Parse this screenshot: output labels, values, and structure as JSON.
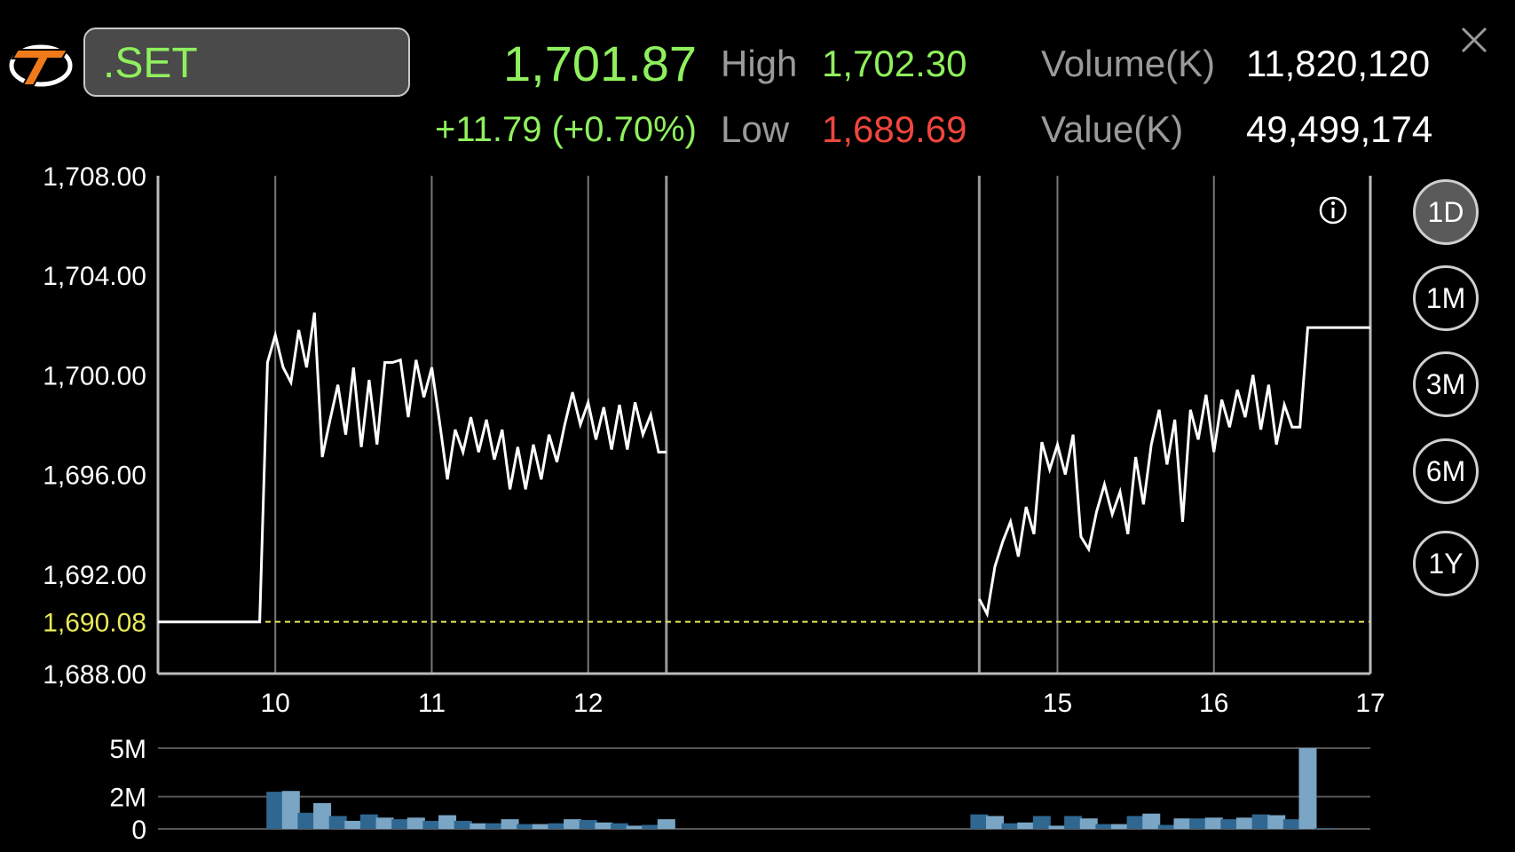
{
  "header": {
    "symbol": ".SET",
    "last_price": "1,701.87",
    "change": "+11.79 (+0.70%)",
    "high_label": "High",
    "high_value": "1,702.30",
    "low_label": "Low",
    "low_value": "1,689.69",
    "volume_label": "Volume(K)",
    "volume_value": "11,820,120",
    "value_label": "Value(K)",
    "value_value": "49,499,174"
  },
  "icons": {
    "logo": "brand-logo-icon",
    "close": "close-icon",
    "info": "info-icon"
  },
  "timeframes": [
    {
      "label": "1D",
      "active": true
    },
    {
      "label": "1M",
      "active": false
    },
    {
      "label": "3M",
      "active": false
    },
    {
      "label": "6M",
      "active": false
    },
    {
      "label": "1Y",
      "active": false
    }
  ],
  "colors": {
    "price_up": "#8ff05d",
    "price_down": "#f0463c",
    "prev_close_line": "#e8e85a",
    "line": "#ffffff",
    "volume_bar_dark": "#2f6791",
    "volume_bar_light": "#7aa5c4"
  },
  "chart_data": [
    {
      "type": "line",
      "ylim": [
        1688.0,
        1708.0
      ],
      "y_ticks": [
        "1,708.00",
        "1,704.00",
        "1,700.00",
        "1,696.00",
        "1,692.00",
        "1,688.00"
      ],
      "y_tick_values": [
        1708,
        1704,
        1700,
        1696,
        1692,
        1688
      ],
      "reference_line": {
        "label": "1,690.08",
        "value": 1690.08
      },
      "x_range": [
        9.25,
        17.0
      ],
      "x_ticks": [
        {
          "label": "10",
          "value": 10
        },
        {
          "label": "11",
          "value": 11
        },
        {
          "label": "12",
          "value": 12
        },
        {
          "label": "15",
          "value": 15
        },
        {
          "label": "16",
          "value": 16
        },
        {
          "label": "17",
          "value": 17
        }
      ],
      "session_breaks": [
        12.5,
        14.5
      ],
      "series": [
        {
          "points": [
            [
              9.25,
              1690.08
            ],
            [
              9.9,
              1690.08
            ],
            [
              9.95,
              1700.5
            ],
            [
              10.0,
              1701.6
            ],
            [
              10.05,
              1700.3
            ],
            [
              10.1,
              1699.7
            ],
            [
              10.15,
              1701.8
            ],
            [
              10.2,
              1700.3
            ],
            [
              10.25,
              1702.5
            ],
            [
              10.3,
              1696.7
            ],
            [
              10.35,
              1698.2
            ],
            [
              10.4,
              1699.6
            ],
            [
              10.45,
              1697.6
            ],
            [
              10.5,
              1700.3
            ],
            [
              10.55,
              1697.1
            ],
            [
              10.6,
              1699.8
            ],
            [
              10.65,
              1697.2
            ],
            [
              10.7,
              1700.5
            ],
            [
              10.75,
              1700.5
            ],
            [
              10.8,
              1700.6
            ],
            [
              10.85,
              1698.3
            ],
            [
              10.9,
              1700.6
            ],
            [
              10.95,
              1699.1
            ],
            [
              11.0,
              1700.3
            ],
            [
              11.05,
              1698.1
            ],
            [
              11.1,
              1695.8
            ],
            [
              11.15,
              1697.8
            ],
            [
              11.2,
              1696.9
            ],
            [
              11.25,
              1698.3
            ],
            [
              11.3,
              1696.9
            ],
            [
              11.35,
              1698.2
            ],
            [
              11.4,
              1696.6
            ],
            [
              11.45,
              1697.8
            ],
            [
              11.5,
              1695.4
            ],
            [
              11.55,
              1697.1
            ],
            [
              11.6,
              1695.4
            ],
            [
              11.65,
              1697.2
            ],
            [
              11.7,
              1695.8
            ],
            [
              11.75,
              1697.6
            ],
            [
              11.8,
              1696.5
            ],
            [
              11.85,
              1698.0
            ],
            [
              11.9,
              1699.3
            ],
            [
              11.95,
              1698.0
            ],
            [
              12.0,
              1698.9
            ],
            [
              12.05,
              1697.4
            ],
            [
              12.1,
              1698.7
            ],
            [
              12.15,
              1697.0
            ],
            [
              12.2,
              1698.8
            ],
            [
              12.25,
              1697.0
            ],
            [
              12.3,
              1698.9
            ],
            [
              12.35,
              1697.6
            ],
            [
              12.4,
              1698.4
            ],
            [
              12.45,
              1696.9
            ],
            [
              12.5,
              1696.9
            ]
          ]
        },
        {
          "points": [
            [
              14.5,
              1691.0
            ],
            [
              14.55,
              1690.4
            ],
            [
              14.6,
              1692.3
            ],
            [
              14.65,
              1693.3
            ],
            [
              14.7,
              1694.1
            ],
            [
              14.75,
              1692.7
            ],
            [
              14.8,
              1694.7
            ],
            [
              14.85,
              1693.6
            ],
            [
              14.9,
              1697.3
            ],
            [
              14.95,
              1696.2
            ],
            [
              15.0,
              1697.2
            ],
            [
              15.05,
              1696.0
            ],
            [
              15.1,
              1697.6
            ],
            [
              15.15,
              1693.5
            ],
            [
              15.2,
              1693.0
            ],
            [
              15.25,
              1694.5
            ],
            [
              15.3,
              1695.6
            ],
            [
              15.35,
              1694.4
            ],
            [
              15.4,
              1695.3
            ],
            [
              15.45,
              1693.6
            ],
            [
              15.5,
              1696.7
            ],
            [
              15.55,
              1694.8
            ],
            [
              15.6,
              1697.2
            ],
            [
              15.65,
              1698.6
            ],
            [
              15.7,
              1696.4
            ],
            [
              15.75,
              1698.2
            ],
            [
              15.8,
              1694.1
            ],
            [
              15.85,
              1698.6
            ],
            [
              15.9,
              1697.4
            ],
            [
              15.95,
              1699.2
            ],
            [
              16.0,
              1696.9
            ],
            [
              16.05,
              1699.0
            ],
            [
              16.1,
              1697.9
            ],
            [
              16.15,
              1699.4
            ],
            [
              16.2,
              1698.3
            ],
            [
              16.25,
              1700.0
            ],
            [
              16.3,
              1697.8
            ],
            [
              16.35,
              1699.6
            ],
            [
              16.4,
              1697.2
            ],
            [
              16.45,
              1698.8
            ],
            [
              16.5,
              1697.9
            ],
            [
              16.55,
              1697.9
            ],
            [
              16.6,
              1701.9
            ],
            [
              17.0,
              1701.9
            ]
          ]
        }
      ]
    },
    {
      "type": "bar",
      "ylim": [
        0,
        5
      ],
      "y_ticks": [
        "5M",
        "2M",
        "0"
      ],
      "y_tick_values": [
        5,
        2,
        0
      ],
      "x_range": [
        9.25,
        17.0
      ],
      "bars": [
        [
          10.0,
          2.3
        ],
        [
          10.1,
          2.35
        ],
        [
          10.2,
          1.0
        ],
        [
          10.3,
          1.6
        ],
        [
          10.4,
          0.8
        ],
        [
          10.5,
          0.5
        ],
        [
          10.6,
          0.9
        ],
        [
          10.7,
          0.7
        ],
        [
          10.8,
          0.6
        ],
        [
          10.9,
          0.7
        ],
        [
          11.0,
          0.5
        ],
        [
          11.1,
          0.85
        ],
        [
          11.2,
          0.5
        ],
        [
          11.3,
          0.35
        ],
        [
          11.4,
          0.35
        ],
        [
          11.5,
          0.6
        ],
        [
          11.6,
          0.3
        ],
        [
          11.7,
          0.3
        ],
        [
          11.8,
          0.35
        ],
        [
          11.9,
          0.6
        ],
        [
          12.0,
          0.55
        ],
        [
          12.1,
          0.4
        ],
        [
          12.2,
          0.35
        ],
        [
          12.3,
          0.2
        ],
        [
          12.4,
          0.25
        ],
        [
          12.5,
          0.6
        ],
        [
          14.5,
          0.9
        ],
        [
          14.6,
          0.8
        ],
        [
          14.7,
          0.35
        ],
        [
          14.8,
          0.4
        ],
        [
          14.9,
          0.8
        ],
        [
          15.0,
          0.2
        ],
        [
          15.1,
          0.8
        ],
        [
          15.2,
          0.65
        ],
        [
          15.3,
          0.3
        ],
        [
          15.4,
          0.3
        ],
        [
          15.5,
          0.8
        ],
        [
          15.6,
          0.95
        ],
        [
          15.7,
          0.25
        ],
        [
          15.8,
          0.65
        ],
        [
          15.9,
          0.65
        ],
        [
          16.0,
          0.7
        ],
        [
          16.1,
          0.6
        ],
        [
          16.2,
          0.7
        ],
        [
          16.3,
          0.9
        ],
        [
          16.4,
          0.85
        ],
        [
          16.5,
          0.6
        ],
        [
          16.6,
          5.0
        ],
        [
          16.7,
          0.05
        ]
      ]
    }
  ]
}
